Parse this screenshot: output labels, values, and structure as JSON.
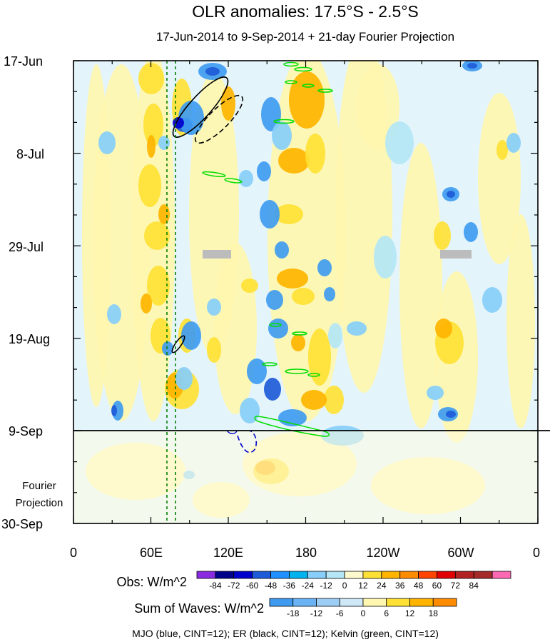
{
  "chart_data": {
    "type": "heatmap",
    "title": "OLR anomalies: 17.5°S - 2.5°S",
    "subtitle": "17-Jun-2014 to 9-Sep-2014 + 21-day Fourier Projection",
    "x_axis": {
      "ticks": [
        "0",
        "60E",
        "120E",
        "180",
        "120W",
        "60W",
        "0"
      ],
      "range": [
        "0",
        "0"
      ]
    },
    "y_axis": {
      "ticks": [
        "17-Jun",
        "8-Jul",
        "29-Jul",
        "19-Aug",
        "9-Sep",
        "30-Sep"
      ],
      "range": [
        "17-Jun",
        "30-Sep"
      ]
    },
    "projection_label": [
      "Fourier",
      "Projection"
    ],
    "obs_colorbar": {
      "label": "Obs: W/m^2",
      "levels": [
        "-84",
        "-72",
        "-60",
        "-48",
        "-36",
        "-24",
        "-12",
        "0",
        "12",
        "24",
        "36",
        "48",
        "60",
        "72",
        "84"
      ],
      "colors": [
        "#8a2be2",
        "#00008b",
        "#0000cd",
        "#1e5bd8",
        "#1e90ff",
        "#00b2ee",
        "#87cefa",
        "#b4e6f5",
        "#fffacd",
        "#ffe135",
        "#ffb400",
        "#ff8c00",
        "#ff4500",
        "#e00000",
        "#b22222",
        "#a52a2a",
        "#ff69b4"
      ]
    },
    "waves_colorbar": {
      "label": "Sum of Waves: W/m^2",
      "levels": [
        "-18",
        "-12",
        "-6",
        "0",
        "6",
        "12",
        "18"
      ],
      "colors": [
        "#3f9bf0",
        "#6ab4f5",
        "#9ccdf5",
        "#cfe8f8",
        "#fff6b0",
        "#ffe135",
        "#ffb400",
        "#ff8c00"
      ]
    },
    "legend_note": "MJO (blue, CINT=12); ER (black, CINT=12); Kelvin (green, CINT=12)",
    "series_colors": {
      "mjo": "#0000cc",
      "er": "#000000",
      "kelvin": "#00dd00"
    }
  }
}
